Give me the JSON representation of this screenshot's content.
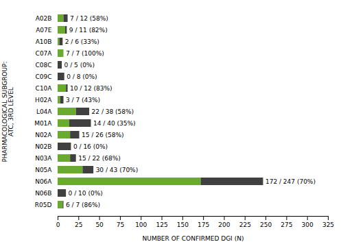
{
  "chart_data": {
    "type": "bar",
    "orientation": "horizontal",
    "stacked": true,
    "categories": [
      "A02B",
      "A07E",
      "A10B",
      "C07A",
      "C08C",
      "C09C",
      "C10A",
      "H02A",
      "L04A",
      "M01A",
      "N02A",
      "N02B",
      "N03A",
      "N05A",
      "N06A",
      "N06B",
      "R05D"
    ],
    "series": [
      {
        "color": "#6aaa2e",
        "values": [
          7,
          9,
          2,
          7,
          0,
          0,
          10,
          3,
          22,
          14,
          15,
          0,
          15,
          30,
          172,
          0,
          6
        ],
        "value_labels": [
          "7 / 12 (58%)",
          "9 / 11 (82%)",
          "2 / 6 (33%)",
          "7 / 7 (100%)",
          "0 / 5 (0%)",
          "0 / 8 (0%)",
          "10 / 12 (83%)",
          "3 / 7 (43%)",
          "22 / 38 (58%)",
          "14 / 40 (35%)",
          "15 / 26 (58%)",
          "0 / 16 (0%)",
          "15 / 22 (68%)",
          "30 / 43 (70%)",
          "172 / 247 (70%)",
          "0 / 10 (0%)",
          "6 / 7 (86%)"
        ]
      },
      {
        "color": "#404040",
        "values": [
          5,
          2,
          4,
          0,
          5,
          8,
          2,
          4,
          16,
          26,
          11,
          16,
          7,
          13,
          75,
          10,
          1
        ]
      }
    ],
    "data_labels": true,
    "xlabel": "NUMBER OF CONFIRMED DGI (N)",
    "ylabel": "PHARMACOLOGICAL SUBGROUP:\nATC, 3RD LEVEL",
    "xlim": [
      0,
      325
    ],
    "xticks": [
      0,
      25,
      50,
      75,
      100,
      125,
      150,
      175,
      200,
      225,
      250,
      275,
      300,
      325
    ]
  }
}
